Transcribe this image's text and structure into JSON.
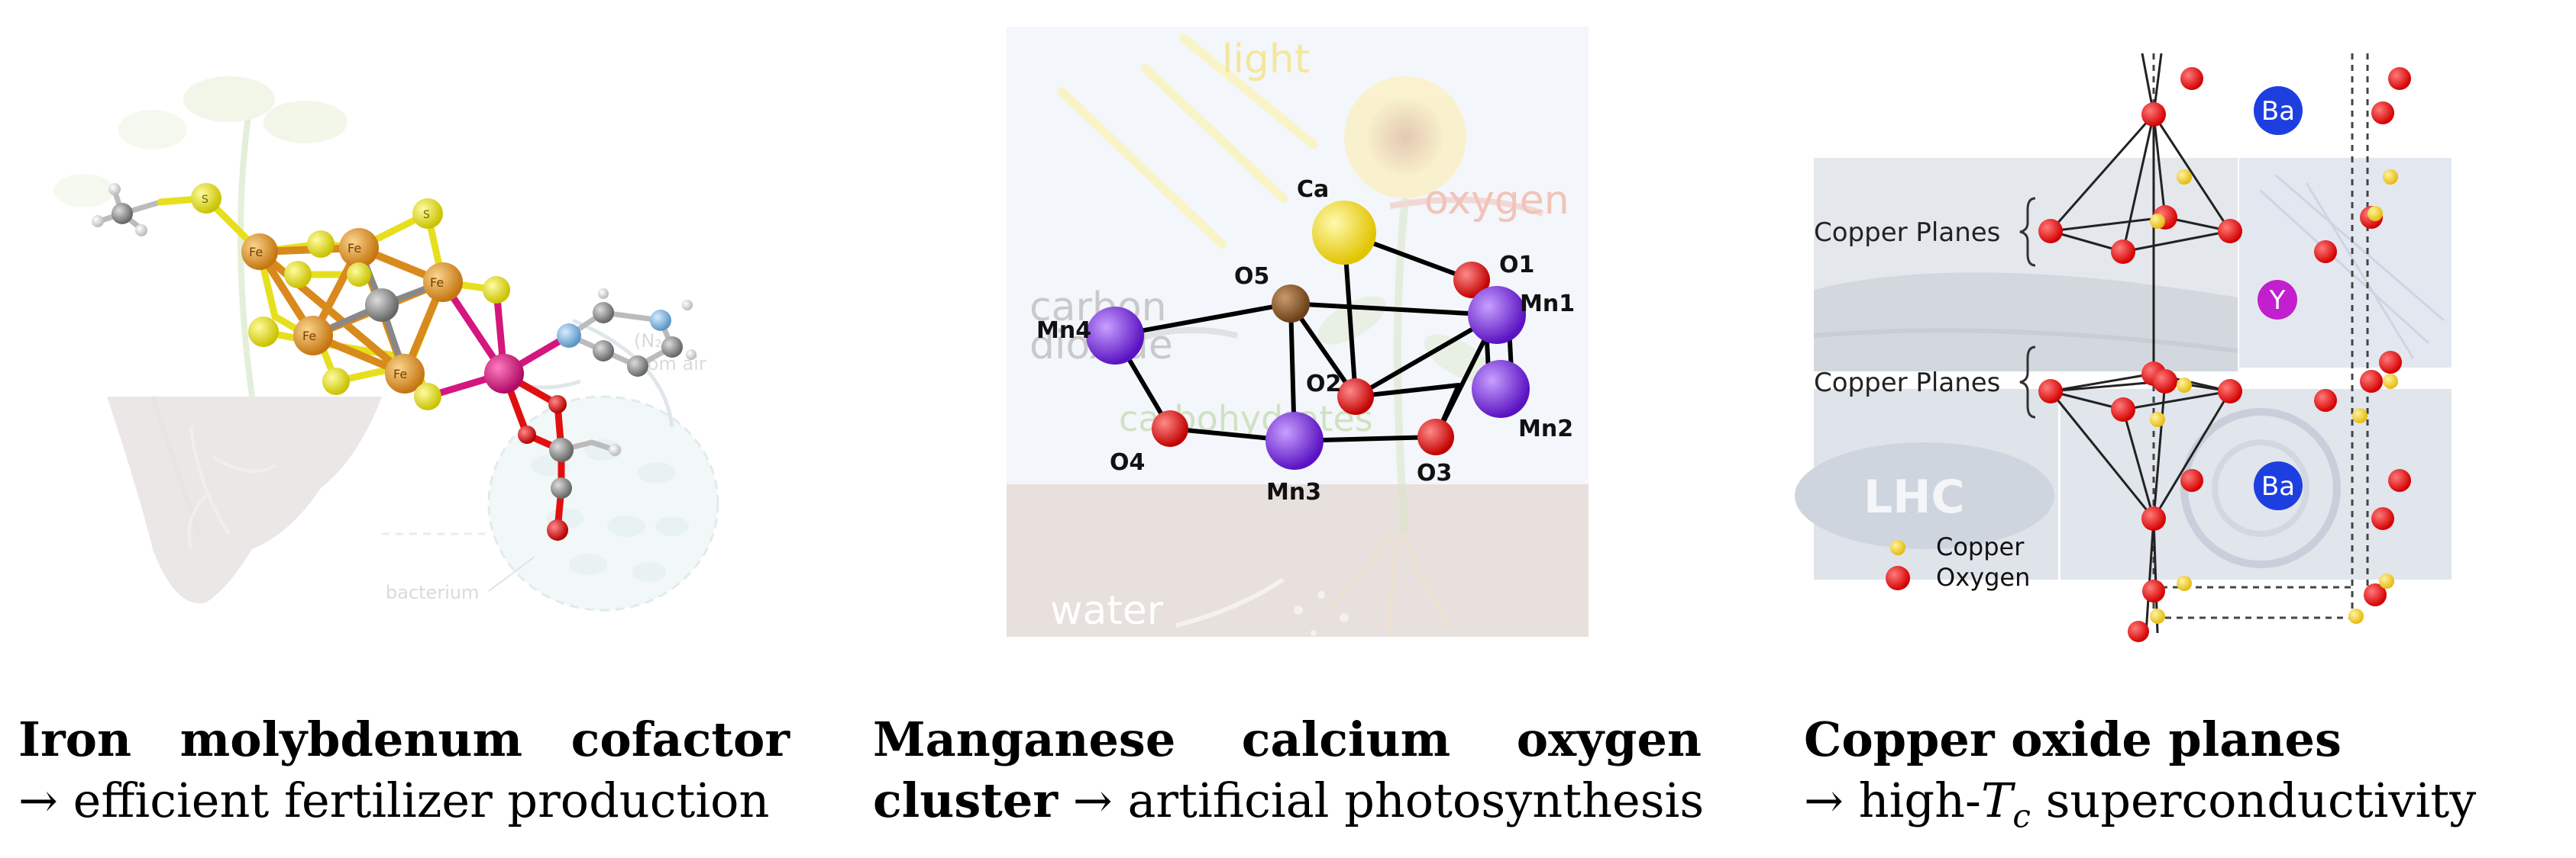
{
  "panels": {
    "fe": {
      "atom_labels": {
        "fe": "Fe",
        "s": "S"
      },
      "background_labels": {
        "n2": "(N₂)",
        "from_air": "from air",
        "bacterium": "bacterium"
      }
    },
    "mn": {
      "atom_labels": {
        "ca": "Ca",
        "o1": "O1",
        "o2": "O2",
        "o3": "O3",
        "o4": "O4",
        "o5": "O5",
        "mn1": "Mn1",
        "mn2": "Mn2",
        "mn3": "Mn3",
        "mn4": "Mn4"
      },
      "background_labels": {
        "light": "light",
        "oxygen": "oxygen",
        "carbon": "carbon",
        "dioxide": "dioxide",
        "carbohydrates": "carbohydrates",
        "water": "water"
      }
    },
    "cu": {
      "plane_label_top": "Copper Planes",
      "plane_label_bottom": "Copper Planes",
      "atom_labels": {
        "ba_top": "Ba",
        "y": "Y",
        "ba_bottom": "Ba"
      },
      "legend": {
        "copper": "Copper",
        "oxygen": "Oxygen"
      },
      "background_labels": {
        "lhc": "LHC"
      }
    }
  },
  "captions": {
    "fe": {
      "line1_words": [
        "Iron",
        "molybdenum",
        "cofactor"
      ],
      "arrow": "→",
      "line2": "efficient fertilizer production"
    },
    "mn": {
      "line1_words": [
        "Manganese",
        "calcium",
        "oxygen"
      ],
      "line2_bold": "cluster",
      "arrow": "→",
      "line2": "artificial photosynthesis"
    },
    "cu": {
      "line1": "Copper oxide planes",
      "arrow": "→",
      "line2_prefix": "high-",
      "tc_main": "T",
      "tc_sub": "c",
      "line2_suffix": "superconductivity"
    }
  },
  "colors": {
    "iron": "#d98a1c",
    "sulfur": "#e6df1e",
    "molybdenum": "#d4167e",
    "carbon_gray": "#888888",
    "oxygen_red": "#e01010",
    "nitrogen": "#7fb4d8",
    "manganese": "#7a2fd6",
    "calcium": "#f2dc1a",
    "o5_brown": "#8b5a2b",
    "copper_yellow": "#f0cc24",
    "barium": "#1e3fe0",
    "yttrium": "#c21fcf"
  }
}
